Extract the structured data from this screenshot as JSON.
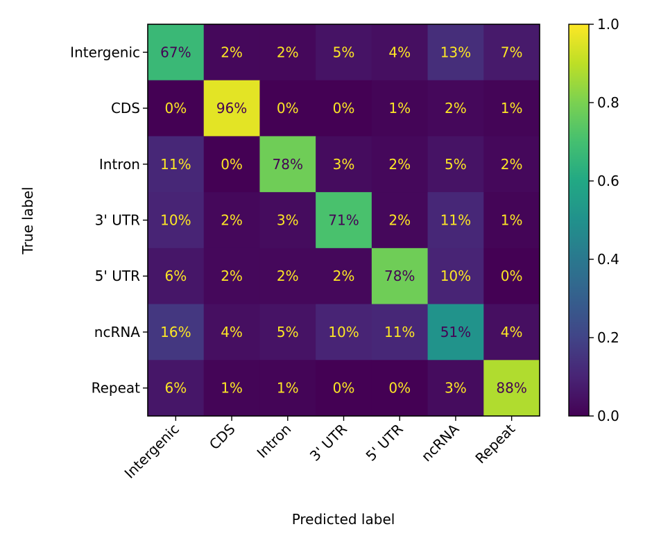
{
  "chart_data": {
    "type": "heatmap",
    "title": "",
    "xlabel": "Predicted label",
    "ylabel": "True label",
    "row_labels": [
      "Intergenic",
      "CDS",
      "Intron",
      "3' UTR",
      "5' UTR",
      "ncRNA",
      "Repeat"
    ],
    "col_labels": [
      "Intergenic",
      "CDS",
      "Intron",
      "3' UTR",
      "5' UTR",
      "ncRNA",
      "Repeat"
    ],
    "values": [
      [
        0.67,
        0.02,
        0.02,
        0.05,
        0.04,
        0.13,
        0.07
      ],
      [
        0.0,
        0.96,
        0.0,
        0.0,
        0.01,
        0.02,
        0.01
      ],
      [
        0.11,
        0.0,
        0.78,
        0.03,
        0.02,
        0.05,
        0.02
      ],
      [
        0.1,
        0.02,
        0.03,
        0.71,
        0.02,
        0.11,
        0.01
      ],
      [
        0.06,
        0.02,
        0.02,
        0.02,
        0.78,
        0.1,
        0.0
      ],
      [
        0.16,
        0.04,
        0.05,
        0.1,
        0.11,
        0.51,
        0.04
      ],
      [
        0.06,
        0.01,
        0.01,
        0.0,
        0.0,
        0.03,
        0.88
      ]
    ],
    "cell_labels": [
      [
        "67%",
        "2%",
        "2%",
        "5%",
        "4%",
        "13%",
        "7%"
      ],
      [
        "0%",
        "96%",
        "0%",
        "0%",
        "1%",
        "2%",
        "1%"
      ],
      [
        "11%",
        "0%",
        "78%",
        "3%",
        "2%",
        "5%",
        "2%"
      ],
      [
        "10%",
        "2%",
        "3%",
        "71%",
        "2%",
        "11%",
        "1%"
      ],
      [
        "6%",
        "2%",
        "2%",
        "2%",
        "78%",
        "10%",
        "0%"
      ],
      [
        "16%",
        "4%",
        "5%",
        "10%",
        "11%",
        "51%",
        "4%"
      ],
      [
        "6%",
        "1%",
        "1%",
        "0%",
        "0%",
        "3%",
        "88%"
      ]
    ],
    "colormap": "viridis",
    "value_range": [
      0.0,
      1.0
    ],
    "colorbar": {
      "ticks": [
        0.0,
        0.2,
        0.4,
        0.6,
        0.8,
        1.0
      ],
      "tick_labels": [
        "0.0",
        "0.2",
        "0.4",
        "0.6",
        "0.8",
        "1.0"
      ],
      "placement": "right"
    },
    "text_colors": {
      "light": "#fde725",
      "dark": "#440154"
    },
    "x_tick_rotation_deg": 45,
    "grid": false
  }
}
